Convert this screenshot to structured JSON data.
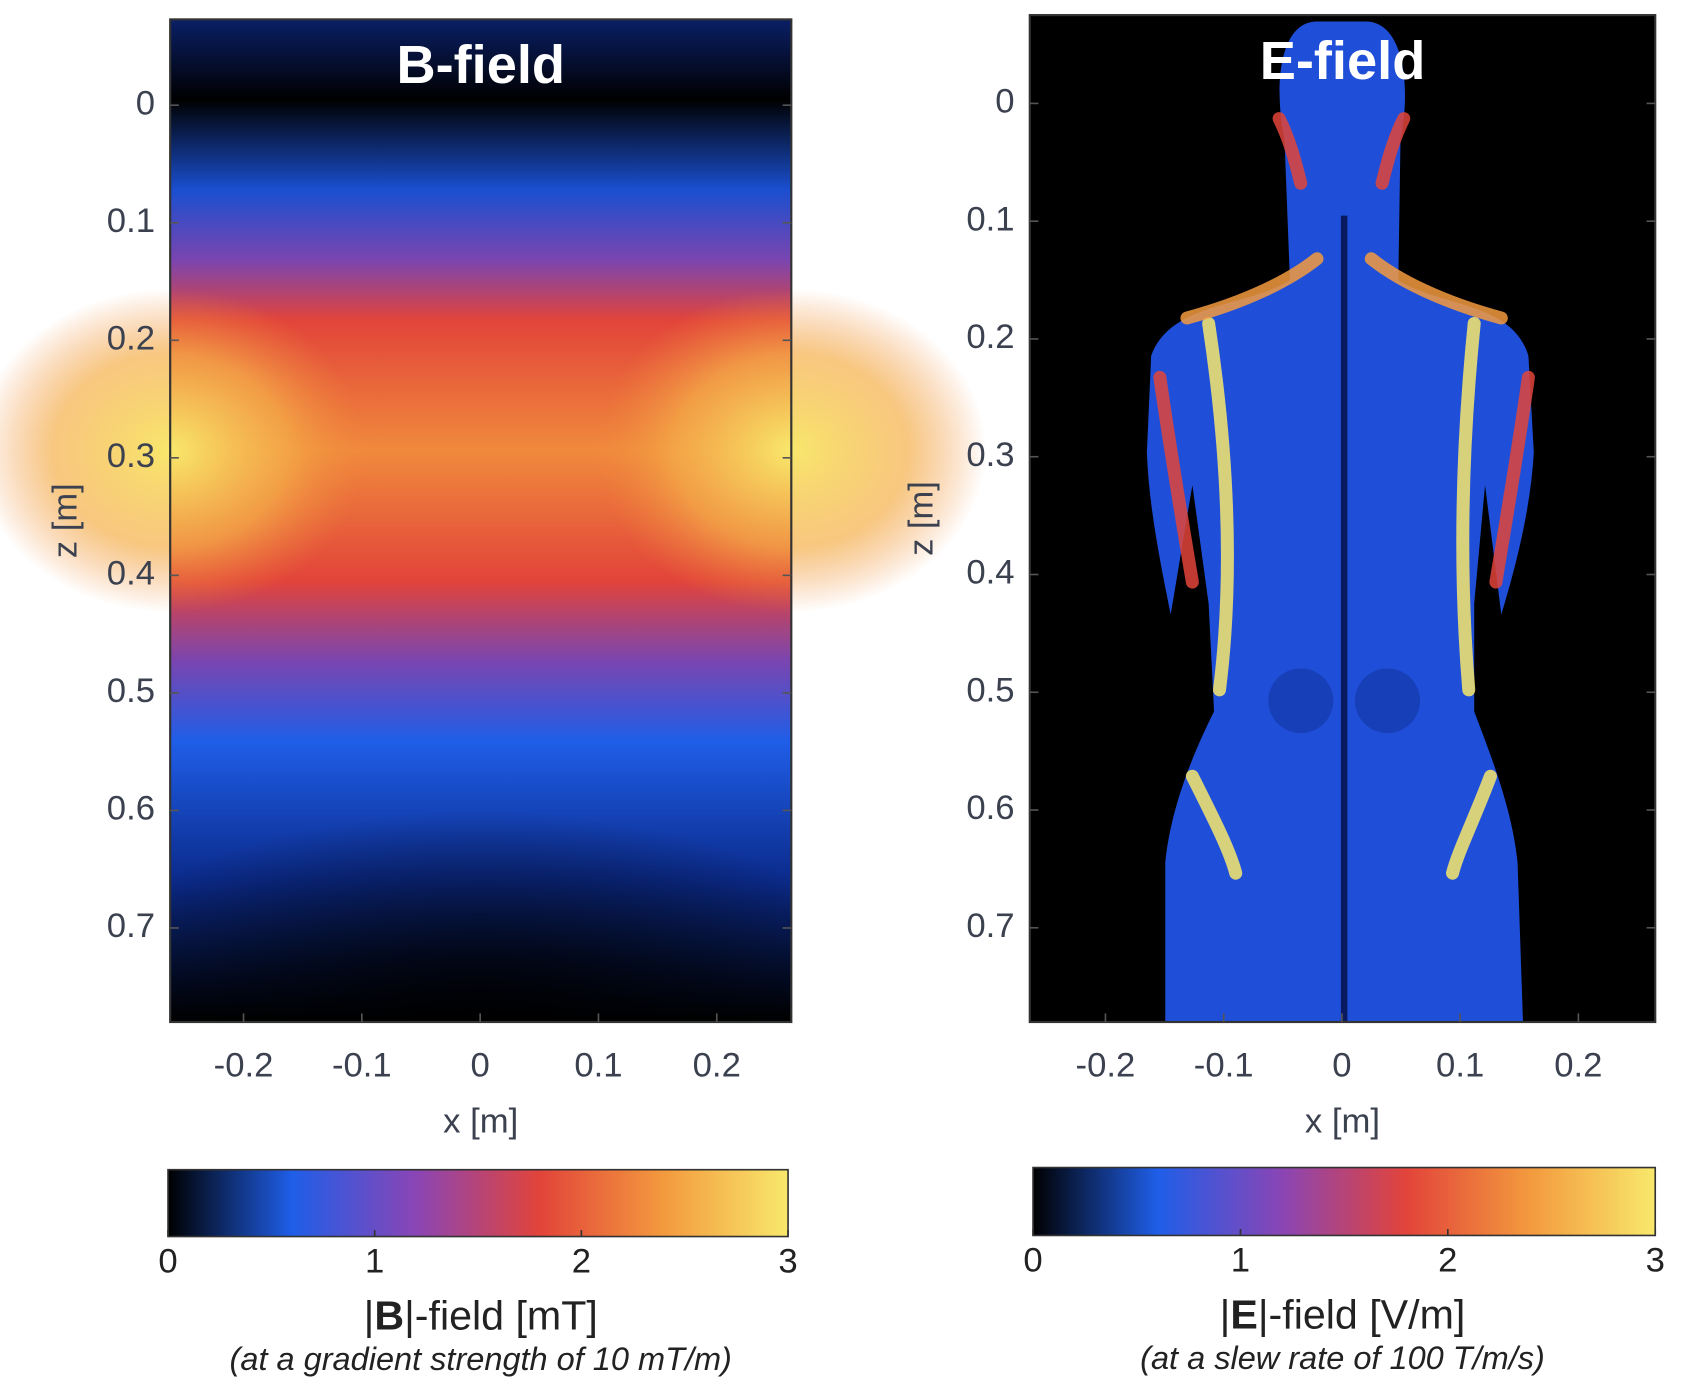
{
  "chart_data": [
    {
      "type": "heatmap",
      "title": "B-field",
      "xlabel": "x [m]",
      "ylabel": "z [m]",
      "xlim": [
        -0.262,
        0.263
      ],
      "ylim": [
        -0.073,
        0.78
      ],
      "y_reversed": true,
      "xticks": [
        -0.2,
        -0.1,
        0,
        0.1,
        0.2
      ],
      "yticks": [
        0,
        0.1,
        0.2,
        0.3,
        0.4,
        0.5,
        0.6,
        0.7
      ],
      "colormap": [
        "#000000",
        "#1f5ee8",
        "#8a45b5",
        "#e2443a",
        "#f39a3e",
        "#f8e86c"
      ],
      "clim": [
        0,
        3
      ],
      "cticks": [
        0,
        1,
        2,
        3
      ],
      "colorbar_label": [
        "|",
        "B",
        "|-field [mT]"
      ],
      "colorbar_note": "(at a gradient strength of 10 mT/m)"
    },
    {
      "type": "heatmap",
      "title": "E-field",
      "xlabel": "x [m]",
      "ylabel": "z [m]",
      "xlim": [
        -0.264,
        0.265
      ],
      "ylim": [
        -0.075,
        0.78
      ],
      "y_reversed": true,
      "xticks": [
        -0.2,
        -0.1,
        0,
        0.1,
        0.2
      ],
      "yticks": [
        0,
        0.1,
        0.2,
        0.3,
        0.4,
        0.5,
        0.6,
        0.7
      ],
      "colormap": [
        "#000000",
        "#1f5ee8",
        "#8a45b5",
        "#e2443a",
        "#f39a3e",
        "#f8e86c"
      ],
      "clim": [
        0,
        3
      ],
      "cticks": [
        0,
        1,
        2,
        3
      ],
      "colorbar_label": [
        "|",
        "E",
        "|-field [V/m]"
      ],
      "colorbar_note": "(at a slew rate of 100 T/m/s)"
    }
  ]
}
